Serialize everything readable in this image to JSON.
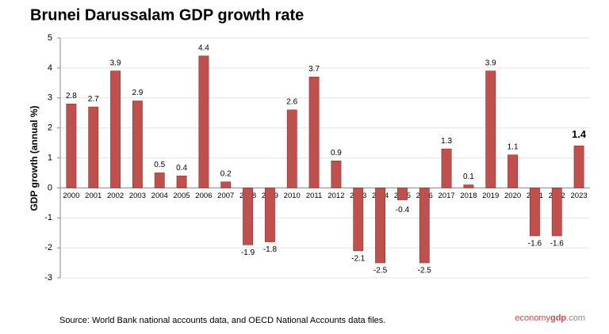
{
  "chart_data": {
    "type": "bar",
    "title": "Brunei Darussalam GDP growth rate",
    "y_label": "GDP growth (annual %)",
    "categories": [
      "2000",
      "2001",
      "2002",
      "2003",
      "2004",
      "2005",
      "2006",
      "2007",
      "2008",
      "2009",
      "2010",
      "2011",
      "2012",
      "2013",
      "2014",
      "2015",
      "2016",
      "2017",
      "2018",
      "2019",
      "2020",
      "2021",
      "2022",
      "2023"
    ],
    "values": [
      2.8,
      2.7,
      3.9,
      2.9,
      0.5,
      0.4,
      4.4,
      0.2,
      -1.9,
      -1.8,
      2.6,
      3.7,
      0.9,
      -2.1,
      -2.5,
      -0.4,
      -2.5,
      1.3,
      0.1,
      3.9,
      1.1,
      -1.6,
      -1.6,
      1.4
    ],
    "color": "#c0504d",
    "ylim": [
      -3,
      5
    ],
    "yticks": [
      -3,
      -2,
      -1,
      0,
      1,
      2,
      3,
      4,
      5
    ],
    "grid": true,
    "source": "Source:  World Bank national accounts data, and OECD National Accounts data files.",
    "brand": [
      "economy",
      "gdp",
      ".com"
    ]
  }
}
